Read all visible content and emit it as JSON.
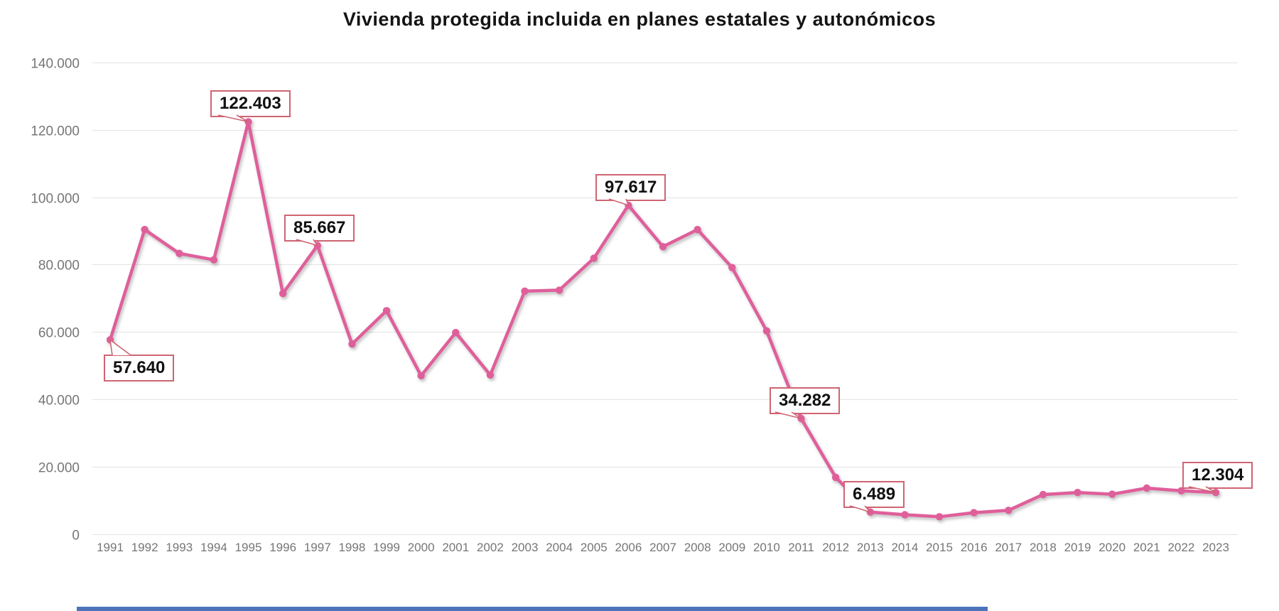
{
  "title": "Vivienda protegida incluida en planes estatales y autonómicos",
  "chart_data": {
    "type": "line",
    "x": [
      "1991",
      "1992",
      "1993",
      "1994",
      "1995",
      "1996",
      "1997",
      "1998",
      "1999",
      "2000",
      "2001",
      "2002",
      "2003",
      "2004",
      "2005",
      "2006",
      "2007",
      "2008",
      "2009",
      "2010",
      "2011",
      "2012",
      "2013",
      "2014",
      "2015",
      "2016",
      "2017",
      "2018",
      "2019",
      "2020",
      "2021",
      "2022",
      "2023"
    ],
    "values": [
      57640,
      90400,
      83300,
      81400,
      122403,
      71400,
      85667,
      56400,
      66300,
      47000,
      59800,
      47200,
      72100,
      72400,
      81900,
      97617,
      85300,
      90400,
      79100,
      60300,
      34282,
      16800,
      6489,
      5700,
      5100,
      6300,
      7000,
      11700,
      12300,
      11800,
      13600,
      12800,
      12304
    ],
    "title": "Vivienda protegida incluida en planes estatales y autonómicos",
    "xlabel": "",
    "ylabel": "",
    "ylim": [
      0,
      140000
    ],
    "y_tick_step": 20000,
    "y_tick_labels": [
      "0",
      "20.000",
      "40.000",
      "60.000",
      "80.000",
      "100.000",
      "120.000",
      "140.000"
    ],
    "grid": true,
    "legend": "none",
    "annotations": [
      {
        "year": "1991",
        "label": "57.640"
      },
      {
        "year": "1995",
        "label": "122.403"
      },
      {
        "year": "1997",
        "label": "85.667"
      },
      {
        "year": "2006",
        "label": "97.617"
      },
      {
        "year": "2011",
        "label": "34.282"
      },
      {
        "year": "2013",
        "label": "6.489"
      },
      {
        "year": "2023",
        "label": "12.304"
      }
    ],
    "colors": {
      "line": "#df5f9b",
      "marker": "#df5f9b",
      "callout_border": "#cf6472",
      "gridline": "#e3e3e3",
      "axis_label": "#767676",
      "title": "#141414",
      "bottom_bar": "#4d74bb"
    }
  }
}
